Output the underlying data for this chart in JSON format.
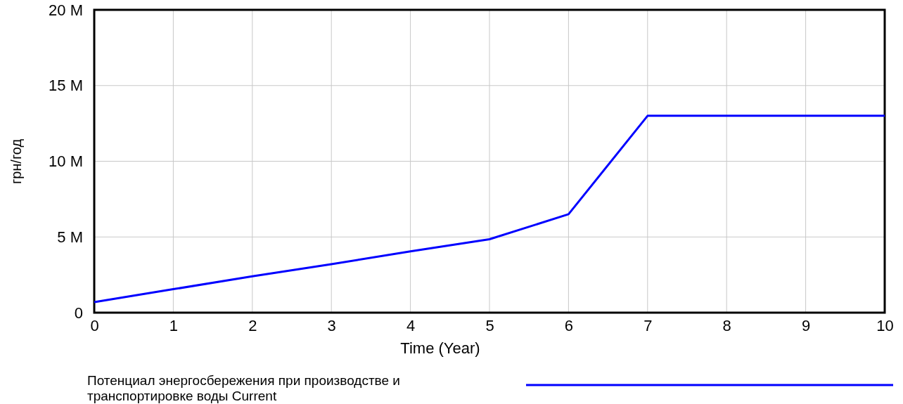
{
  "chart_data": {
    "type": "line",
    "xlabel": "Time (Year)",
    "ylabel": "грн/год",
    "x": [
      0,
      1,
      2,
      3,
      4,
      5,
      6,
      7,
      8,
      9,
      10
    ],
    "series": [
      {
        "name": "Потенциал энергосбережения при производстве и транспортировке воды  Current",
        "color": "#0000ff",
        "values": [
          700000,
          1550000,
          2400000,
          3200000,
          4050000,
          4850000,
          6500000,
          13000000,
          13000000,
          13000000,
          13000000
        ]
      }
    ],
    "xlim": [
      0,
      10
    ],
    "xticks": [
      0,
      1,
      2,
      3,
      4,
      5,
      6,
      7,
      8,
      9,
      10
    ],
    "ylim": [
      0,
      20000000
    ],
    "yticks": [
      {
        "value": 0,
        "label": "0"
      },
      {
        "value": 5000000,
        "label": "5 M"
      },
      {
        "value": 10000000,
        "label": "10 M"
      },
      {
        "value": 15000000,
        "label": "15 M"
      },
      {
        "value": 20000000,
        "label": "20 M"
      }
    ],
    "grid": true,
    "legend": "bottom",
    "marker": "none",
    "line_style": "solid"
  }
}
